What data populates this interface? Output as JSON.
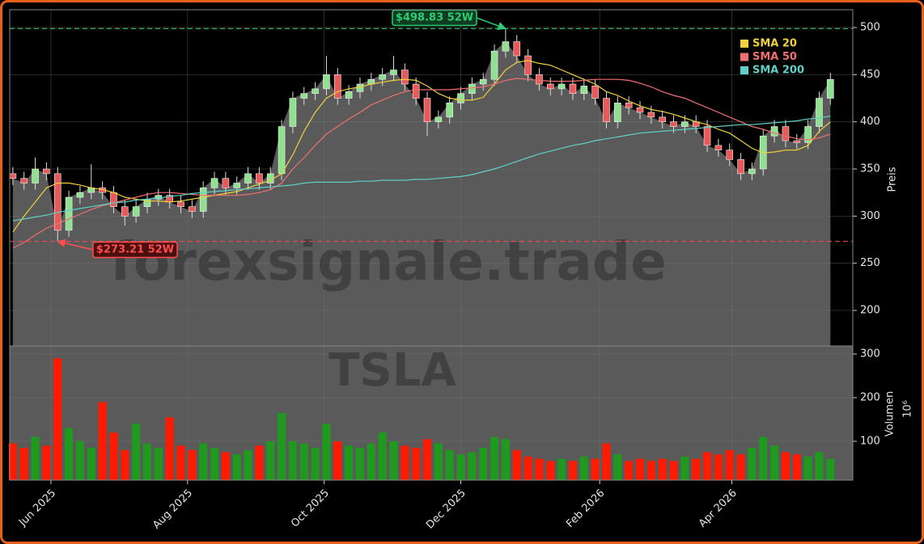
{
  "chart_data": [
    {
      "type": "candlestick",
      "x": [
        -17,
        -12,
        -7,
        -2,
        3,
        8,
        13,
        18,
        23,
        28,
        33,
        38,
        43,
        48,
        53,
        58,
        63,
        68,
        73,
        78,
        83,
        88,
        93,
        98,
        103,
        108,
        113,
        118,
        123,
        128,
        133,
        138,
        143,
        148,
        153,
        158,
        163,
        168,
        173,
        178,
        183,
        188,
        193,
        198,
        203,
        208,
        213,
        218,
        223,
        228,
        233,
        238,
        243,
        248,
        253,
        258,
        263,
        268,
        273,
        278,
        283,
        288,
        293,
        298,
        303,
        308,
        313,
        318,
        323,
        328,
        333,
        338,
        343,
        348
      ],
      "open": [
        345,
        340,
        335,
        350,
        345,
        285,
        320,
        325,
        330,
        325,
        310,
        300,
        310,
        318,
        322,
        315,
        310,
        305,
        330,
        340,
        330,
        335,
        345,
        335,
        345,
        395,
        425,
        430,
        435,
        450,
        425,
        432,
        440,
        445,
        450,
        455,
        440,
        425,
        400,
        405,
        420,
        430,
        440,
        445,
        475,
        485,
        470,
        450,
        440,
        435,
        440,
        430,
        438,
        425,
        400,
        420,
        415,
        410,
        405,
        400,
        395,
        400,
        395,
        375,
        370,
        360,
        345,
        350,
        385,
        395,
        380,
        378,
        395,
        425
      ],
      "high": [
        352,
        347,
        362,
        357,
        352,
        327,
        332,
        355,
        337,
        332,
        317,
        317,
        325,
        329,
        329,
        322,
        317,
        337,
        347,
        347,
        342,
        352,
        352,
        352,
        402,
        432,
        437,
        442,
        470,
        457,
        439,
        447,
        452,
        457,
        470,
        462,
        447,
        432,
        412,
        427,
        437,
        447,
        452,
        482,
        498.83,
        492,
        477,
        457,
        447,
        447,
        447,
        445,
        445,
        432,
        427,
        427,
        422,
        417,
        412,
        407,
        407,
        407,
        402,
        382,
        377,
        367,
        357,
        392,
        402,
        402,
        387,
        402,
        432,
        452
      ],
      "low": [
        333,
        328,
        328,
        338,
        273.21,
        278,
        313,
        318,
        318,
        303,
        290,
        293,
        303,
        311,
        308,
        303,
        298,
        298,
        323,
        323,
        323,
        328,
        328,
        328,
        338,
        388,
        418,
        423,
        428,
        418,
        418,
        425,
        433,
        438,
        443,
        433,
        418,
        385,
        393,
        398,
        413,
        423,
        433,
        438,
        468,
        463,
        443,
        433,
        428,
        428,
        423,
        423,
        418,
        393,
        393,
        408,
        403,
        398,
        393,
        388,
        388,
        388,
        368,
        363,
        353,
        338,
        338,
        343,
        378,
        373,
        371,
        371,
        388,
        418
      ],
      "close": [
        340,
        335,
        350,
        345,
        285,
        320,
        325,
        330,
        325,
        310,
        300,
        310,
        318,
        322,
        315,
        310,
        305,
        330,
        340,
        330,
        335,
        345,
        335,
        345,
        395,
        425,
        430,
        435,
        450,
        425,
        432,
        440,
        445,
        450,
        455,
        440,
        425,
        400,
        405,
        420,
        430,
        440,
        445,
        475,
        485,
        470,
        450,
        440,
        435,
        440,
        430,
        438,
        425,
        400,
        420,
        415,
        410,
        405,
        400,
        395,
        400,
        395,
        375,
        370,
        360,
        345,
        350,
        385,
        395,
        380,
        378,
        395,
        425,
        445
      ],
      "up_color": "#8fe08f",
      "down_color": "#e85a5a",
      "area_color": "#5a5a5a",
      "series": [
        {
          "name": "SMA 20",
          "color": "#f2d13a",
          "values": [
            283,
            300,
            315,
            330,
            335,
            335,
            333,
            330,
            328,
            325,
            320,
            318,
            316,
            316,
            315,
            316,
            318,
            320,
            322,
            324,
            326,
            330,
            334,
            338,
            345,
            365,
            390,
            410,
            425,
            432,
            435,
            437,
            440,
            442,
            444,
            445,
            444,
            438,
            430,
            425,
            423,
            423,
            426,
            440,
            455,
            463,
            465,
            462,
            460,
            455,
            450,
            445,
            440,
            432,
            428,
            422,
            417,
            413,
            411,
            408,
            404,
            400,
            397,
            392,
            388,
            380,
            372,
            367,
            368,
            370,
            370,
            375,
            390,
            400
          ]
        },
        {
          "name": "SMA 50",
          "color": "#f07070",
          "values": [
            266,
            272,
            280,
            287,
            292,
            297,
            302,
            307,
            311,
            314,
            317,
            320,
            323,
            325,
            325,
            324,
            323,
            322,
            322,
            322,
            322,
            323,
            325,
            328,
            335,
            350,
            362,
            375,
            387,
            395,
            403,
            410,
            418,
            423,
            428,
            432,
            434,
            434,
            434,
            434,
            435,
            436,
            437,
            440,
            444,
            446,
            445,
            444,
            443,
            443,
            443,
            444,
            445,
            445,
            445,
            444,
            441,
            437,
            432,
            428,
            425,
            420,
            415,
            410,
            405,
            400,
            395,
            392,
            388,
            385,
            382,
            381,
            383,
            387
          ]
        },
        {
          "name": "SMA 200",
          "color": "#5fd0c8",
          "values": [
            295,
            297,
            299,
            301,
            304,
            306,
            308,
            310,
            312,
            314,
            315,
            317,
            318,
            319,
            321,
            322,
            324,
            325,
            326,
            327,
            328,
            329,
            330,
            331,
            332,
            333,
            335,
            336,
            336,
            336,
            336,
            337,
            337,
            338,
            338,
            338,
            339,
            339,
            340,
            341,
            342,
            344,
            347,
            350,
            354,
            358,
            362,
            366,
            369,
            372,
            375,
            377,
            380,
            382,
            384,
            386,
            388,
            389,
            390,
            391,
            392,
            393,
            394,
            395,
            396,
            397,
            397,
            398,
            399,
            400,
            401,
            403,
            404,
            406
          ]
        }
      ],
      "xlim": [
        -18.4,
        358
      ],
      "ylim": [
        162.3,
        518.9
      ],
      "yticks": [
        200,
        250,
        300,
        350,
        400,
        450,
        500
      ],
      "ylabel": "Preis",
      "grid": true,
      "legend": "upper right",
      "annotations": [
        {
          "text": "$498.83 52W",
          "value": 498.83,
          "color": "#2ecc71"
        },
        {
          "text": "$273.21 52W",
          "value": 273.21,
          "color": "#ff4d4d"
        }
      ],
      "watermark": "forexsignale.trade",
      "ticker": "TSLA"
    },
    {
      "type": "bar",
      "x": [
        -17,
        -12,
        -7,
        -2,
        3,
        8,
        13,
        18,
        23,
        28,
        33,
        38,
        43,
        48,
        53,
        58,
        63,
        68,
        73,
        78,
        83,
        88,
        93,
        98,
        103,
        108,
        113,
        118,
        123,
        128,
        133,
        138,
        143,
        148,
        153,
        158,
        163,
        168,
        173,
        178,
        183,
        188,
        193,
        198,
        203,
        208,
        213,
        218,
        223,
        228,
        233,
        238,
        243,
        248,
        253,
        258,
        263,
        268,
        273,
        278,
        283,
        288,
        293,
        298,
        303,
        308,
        313,
        318,
        323,
        328,
        333,
        338,
        343,
        348
      ],
      "values": [
        95,
        85,
        110,
        90,
        290,
        130,
        100,
        85,
        190,
        120,
        80,
        140,
        95,
        85,
        155,
        90,
        80,
        95,
        85,
        75,
        70,
        80,
        90,
        100,
        165,
        100,
        95,
        85,
        140,
        100,
        90,
        85,
        95,
        120,
        100,
        90,
        85,
        105,
        95,
        80,
        70,
        75,
        85,
        110,
        105,
        80,
        65,
        60,
        55,
        60,
        55,
        65,
        60,
        95,
        70,
        55,
        60,
        55,
        60,
        55,
        65,
        60,
        75,
        70,
        80,
        70,
        85,
        110,
        90,
        75,
        70,
        65,
        75,
        60
      ],
      "up_color": "#1f9a1f",
      "down_color": "#ff1a00",
      "xlim": [
        -18.4,
        358
      ],
      "xticks": [
        {
          "value": 0,
          "label": "Jun 2025"
        },
        {
          "value": 61,
          "label": "Aug 2025"
        },
        {
          "value": 122,
          "label": "Oct 2025"
        },
        {
          "value": 183,
          "label": "Dec 2025"
        },
        {
          "value": 245,
          "label": "Feb 2026"
        },
        {
          "value": 304,
          "label": "Apr 2026"
        }
      ],
      "ylim": [
        11,
        318.5
      ],
      "yticks": [
        100,
        200,
        300
      ],
      "ylabel": "Volumen",
      "offset_label": "10⁶",
      "grid": true
    }
  ]
}
